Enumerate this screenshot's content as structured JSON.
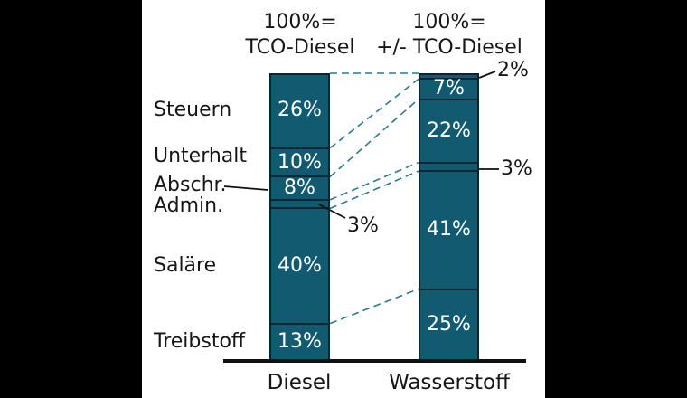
{
  "chart_data": {
    "type": "bar",
    "subtype": "stacked-percentage-comparison",
    "title_left": "100%= TCO-Diesel",
    "title_right": "100%= +/- TCO-Diesel",
    "categories": [
      "Steuern",
      "Unterhalt",
      "Abschr.",
      "Admin.",
      "Saläre",
      "Treibstoff"
    ],
    "series": [
      {
        "name": "Diesel",
        "values": [
          26,
          10,
          8,
          3,
          40,
          13
        ]
      },
      {
        "name": "Wasserstoff",
        "values": [
          2,
          7,
          22,
          3,
          41,
          25
        ]
      }
    ],
    "unit": "%",
    "ylim": [
      0,
      100
    ],
    "grid": false,
    "legend_position": "none",
    "connector_style": "dashed",
    "stacking_order": "top-to-bottom"
  },
  "headers": {
    "left_line1": "100%=",
    "left_line2": "TCO-Diesel",
    "right_line1": "100%=",
    "right_line2": "+/- TCO-Diesel"
  },
  "segment_labels": {
    "diesel": [
      "26%",
      "10%",
      "8%",
      "3%",
      "40%",
      "13%"
    ],
    "wasserstoff": [
      "2%",
      "7%",
      "22%",
      "3%",
      "41%",
      "25%"
    ]
  },
  "x_axis": {
    "left_label": "Diesel",
    "right_label": "Wasserstoff"
  },
  "colors": {
    "bar": "#115a70",
    "segment_border": "#0a2630",
    "connector": "#2d7a8c",
    "callout_line": "#111111",
    "text": "#161616",
    "bar_text": "#ffffff",
    "background": "#ffffff",
    "letterbox": "#000000"
  }
}
